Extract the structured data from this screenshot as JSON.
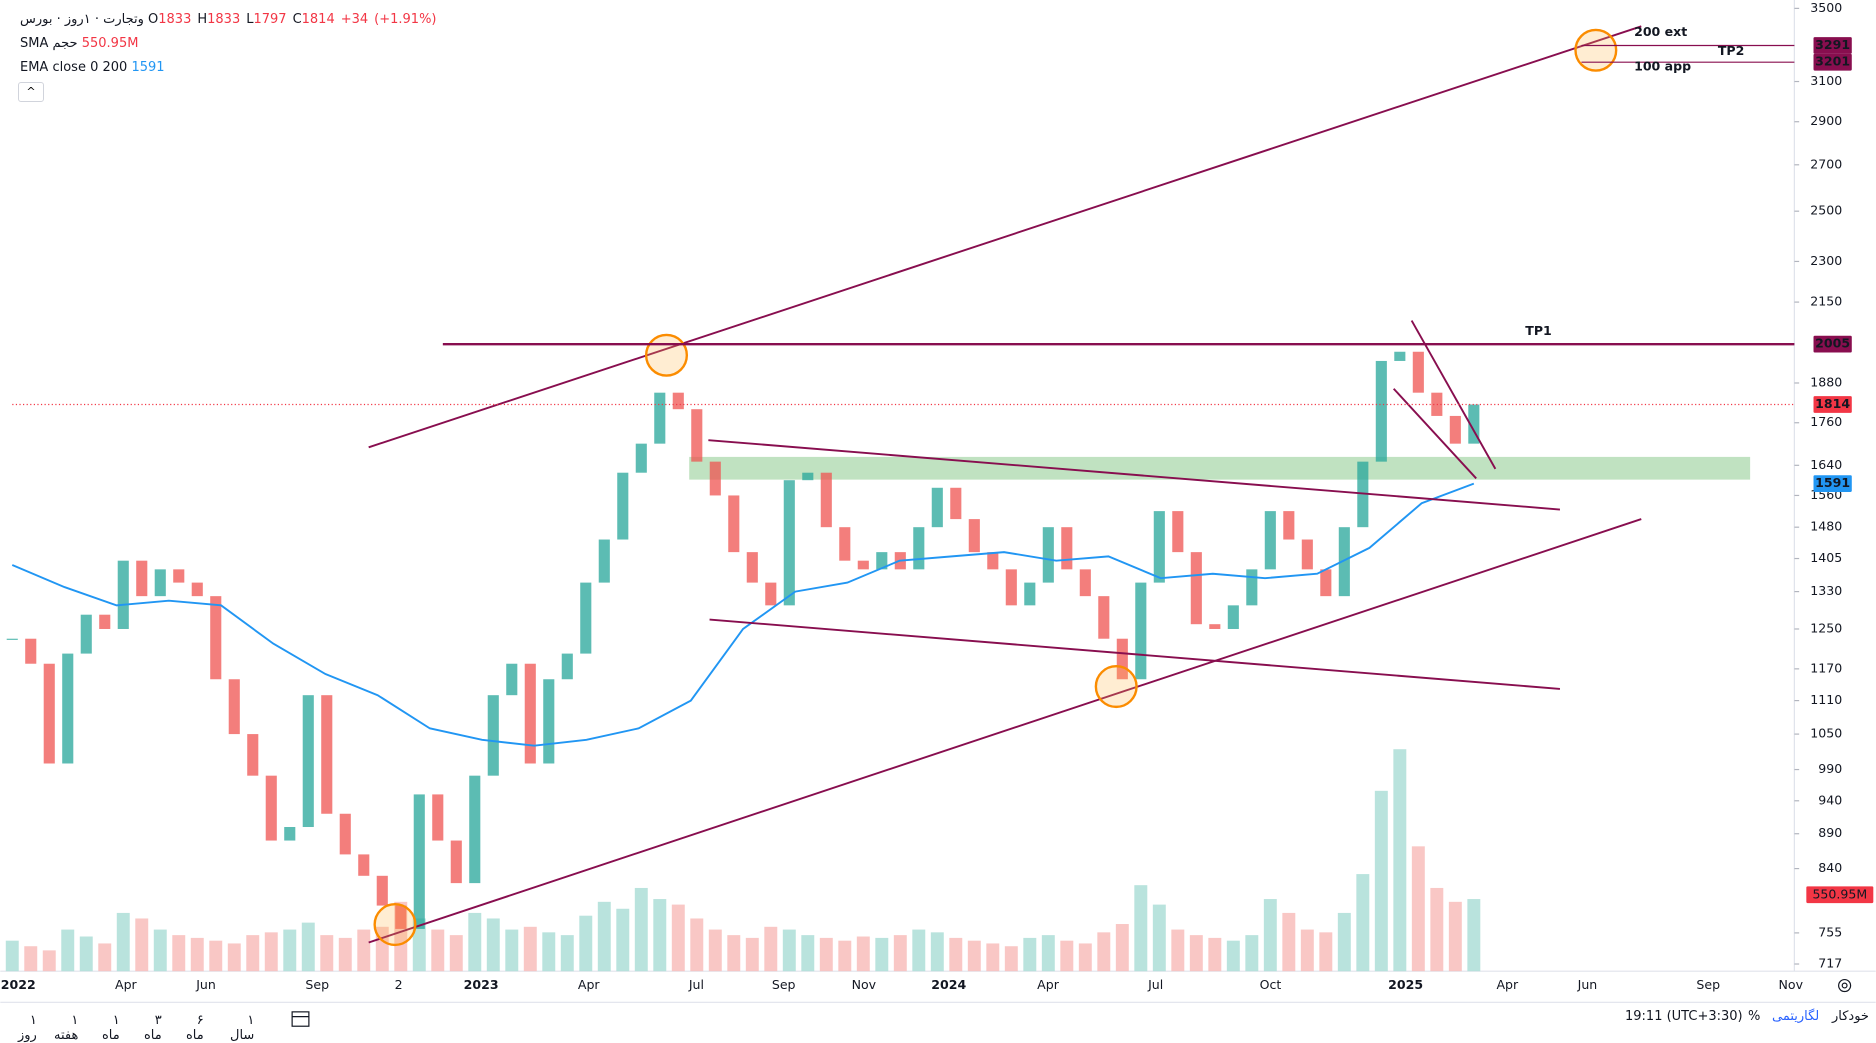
{
  "header": {
    "symbol": "وتجارت · ۱روز · بورس",
    "ohlc": [
      {
        "label": "O",
        "value": 1833
      },
      {
        "label": "H",
        "value": 1833
      },
      {
        "label": "L",
        "value": 1797
      },
      {
        "label": "C",
        "value": 1814
      }
    ],
    "change": {
      "value": 34,
      "label": "+34"
    },
    "change_pct": {
      "value": 1.91,
      "label": "(+1.91%)"
    },
    "volume_sma": {
      "name": "حجم SMA",
      "value": 550.95,
      "label": "550.95M"
    },
    "ema": {
      "name": "EMA close 0 200",
      "value": 1591
    }
  },
  "chart_data": {
    "type": "candlestick",
    "log_scale": true,
    "closes": [
      1230,
      1180,
      1000,
      1200,
      1280,
      1250,
      1400,
      1320,
      1380,
      1350,
      1320,
      1150,
      1050,
      980,
      880,
      900,
      1120,
      920,
      860,
      830,
      790,
      760,
      950,
      880,
      820,
      980,
      1120,
      1180,
      1000,
      1150,
      1200,
      1350,
      1450,
      1620,
      1700,
      1850,
      1800,
      1650,
      1560,
      1420,
      1350,
      1300,
      1600,
      1620,
      1480,
      1400,
      1380,
      1420,
      1380,
      1480,
      1580,
      1500,
      1420,
      1380,
      1300,
      1350,
      1480,
      1380,
      1320,
      1230,
      1150,
      1350,
      1520,
      1420,
      1260,
      1250,
      1300,
      1380,
      1520,
      1450,
      1380,
      1320,
      1480,
      1650,
      1950,
      1980,
      1850,
      1780,
      1700,
      1814
    ],
    "volume": {
      "values": [
        220,
        180,
        150,
        300,
        250,
        200,
        420,
        380,
        300,
        260,
        240,
        220,
        200,
        260,
        280,
        300,
        350,
        260,
        240,
        300,
        320,
        500,
        380,
        300,
        260,
        420,
        380,
        300,
        320,
        280,
        260,
        400,
        500,
        450,
        600,
        520,
        480,
        380,
        300,
        260,
        240,
        320,
        300,
        260,
        240,
        220,
        250,
        240,
        260,
        300,
        280,
        240,
        220,
        200,
        180,
        240,
        260,
        220,
        200,
        280,
        340,
        620,
        480,
        300,
        260,
        240,
        220,
        260,
        520,
        420,
        300,
        280,
        420,
        700,
        1300,
        1600,
        900,
        600,
        500,
        520
      ]
    },
    "ema": {
      "name": "EMA close 0 200",
      "color": "#2196f3",
      "values": [
        1390,
        1340,
        1300,
        1310,
        1300,
        1220,
        1160,
        1120,
        1060,
        1040,
        1030,
        1040,
        1060,
        1110,
        1250,
        1330,
        1350,
        1400,
        1410,
        1420,
        1400,
        1410,
        1360,
        1370,
        1360,
        1370,
        1430,
        1540,
        1591
      ]
    },
    "ylim": [
      717,
      3500
    ],
    "yticks": [
      3500,
      3100,
      2900,
      2700,
      2500,
      2300,
      2150,
      1880,
      1760,
      1640,
      1560,
      1480,
      1405,
      1330,
      1250,
      1170,
      1110,
      1050,
      990,
      940,
      890,
      840,
      755,
      717
    ],
    "x_labels": [
      "2022",
      "Apr",
      "Jun",
      "Sep",
      "2",
      "2023",
      "Apr",
      "Jul",
      "Sep",
      "Nov",
      "2024",
      "Apr",
      "Jul",
      "Oct",
      "2025",
      "Apr",
      "Jun",
      "Sep",
      "Nov"
    ],
    "levels": [
      {
        "value": 3291,
        "color": "#880e4f"
      },
      {
        "value": 3201,
        "color": "#880e4f"
      },
      {
        "value": 2005,
        "color": "#880e4f"
      },
      {
        "value": 1814,
        "color": "#f23645"
      },
      {
        "value": 1591,
        "color": "#2196f3"
      }
    ],
    "volume_label": {
      "value": 550.95,
      "label": "550.95M",
      "color": "#f23645"
    },
    "annotations": [
      "200 ext",
      "TP2",
      "100 app",
      "TP1"
    ]
  },
  "toolbar": {
    "ranges": [
      "۱ روز",
      "۱ هفته",
      "۱ ماه",
      "۳ ماه",
      "۶ ماه",
      "۱ سال"
    ],
    "time": "19:11 (UTC+3:30)",
    "percent": "%",
    "scale": "لگاریتمی",
    "auto": "خودکار"
  }
}
